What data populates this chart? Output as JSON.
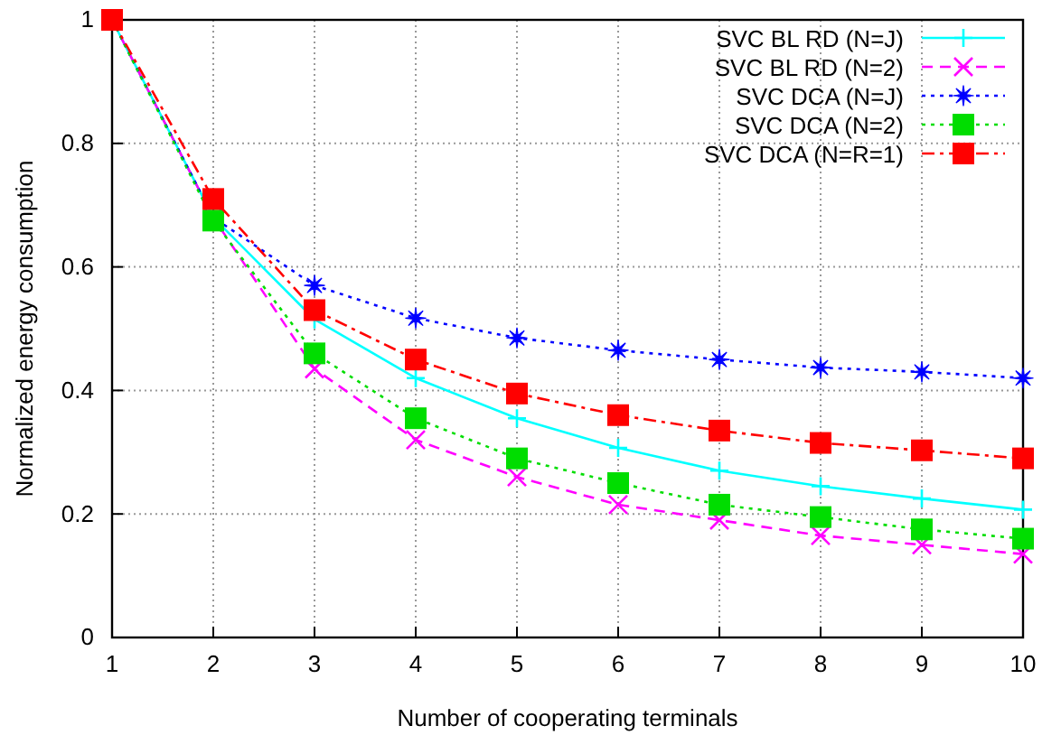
{
  "chart_data": {
    "type": "line",
    "xlabel": "Number of cooperating terminals",
    "ylabel": "Normalized energy consumption",
    "x": [
      1,
      2,
      3,
      4,
      5,
      6,
      7,
      8,
      9,
      10
    ],
    "xlim": [
      1,
      10
    ],
    "xticks": [
      1,
      2,
      3,
      4,
      5,
      6,
      7,
      8,
      9,
      10
    ],
    "ylim": [
      0,
      1
    ],
    "yticks": [
      0,
      0.2,
      0.4,
      0.6,
      0.8,
      1
    ],
    "grid": true,
    "legend": "top right",
    "series": [
      {
        "name": "SVC BL RD (N=J)",
        "color": "#00ffff",
        "marker": "cross",
        "line_style": "solid",
        "values": [
          1,
          0.68,
          0.515,
          0.42,
          0.355,
          0.307,
          0.27,
          0.245,
          0.225,
          0.207
        ]
      },
      {
        "name": "SVC BL RD (N=2)",
        "color": "#ff00ff",
        "marker": "x",
        "line_style": "dashed",
        "values": [
          1,
          0.68,
          0.435,
          0.32,
          0.26,
          0.215,
          0.19,
          0.165,
          0.15,
          0.135
        ]
      },
      {
        "name": "SVC DCA (N=J)",
        "color": "#0000ff",
        "marker": "star",
        "line_style": "dotted",
        "values": [
          1,
          0.68,
          0.57,
          0.517,
          0.485,
          0.465,
          0.45,
          0.437,
          0.43,
          0.42
        ]
      },
      {
        "name": "SVC DCA (N=2)",
        "color": "#00dd00",
        "marker": "square",
        "line_style": "dotted",
        "values": [
          1,
          0.675,
          0.46,
          0.355,
          0.29,
          0.25,
          0.215,
          0.195,
          0.175,
          0.16
        ]
      },
      {
        "name": "SVC DCA (N=R=1)",
        "color": "#ff0000",
        "marker": "square",
        "line_style": "dashdot",
        "values": [
          1,
          0.71,
          0.53,
          0.45,
          0.395,
          0.36,
          0.335,
          0.315,
          0.303,
          0.29
        ]
      }
    ]
  }
}
